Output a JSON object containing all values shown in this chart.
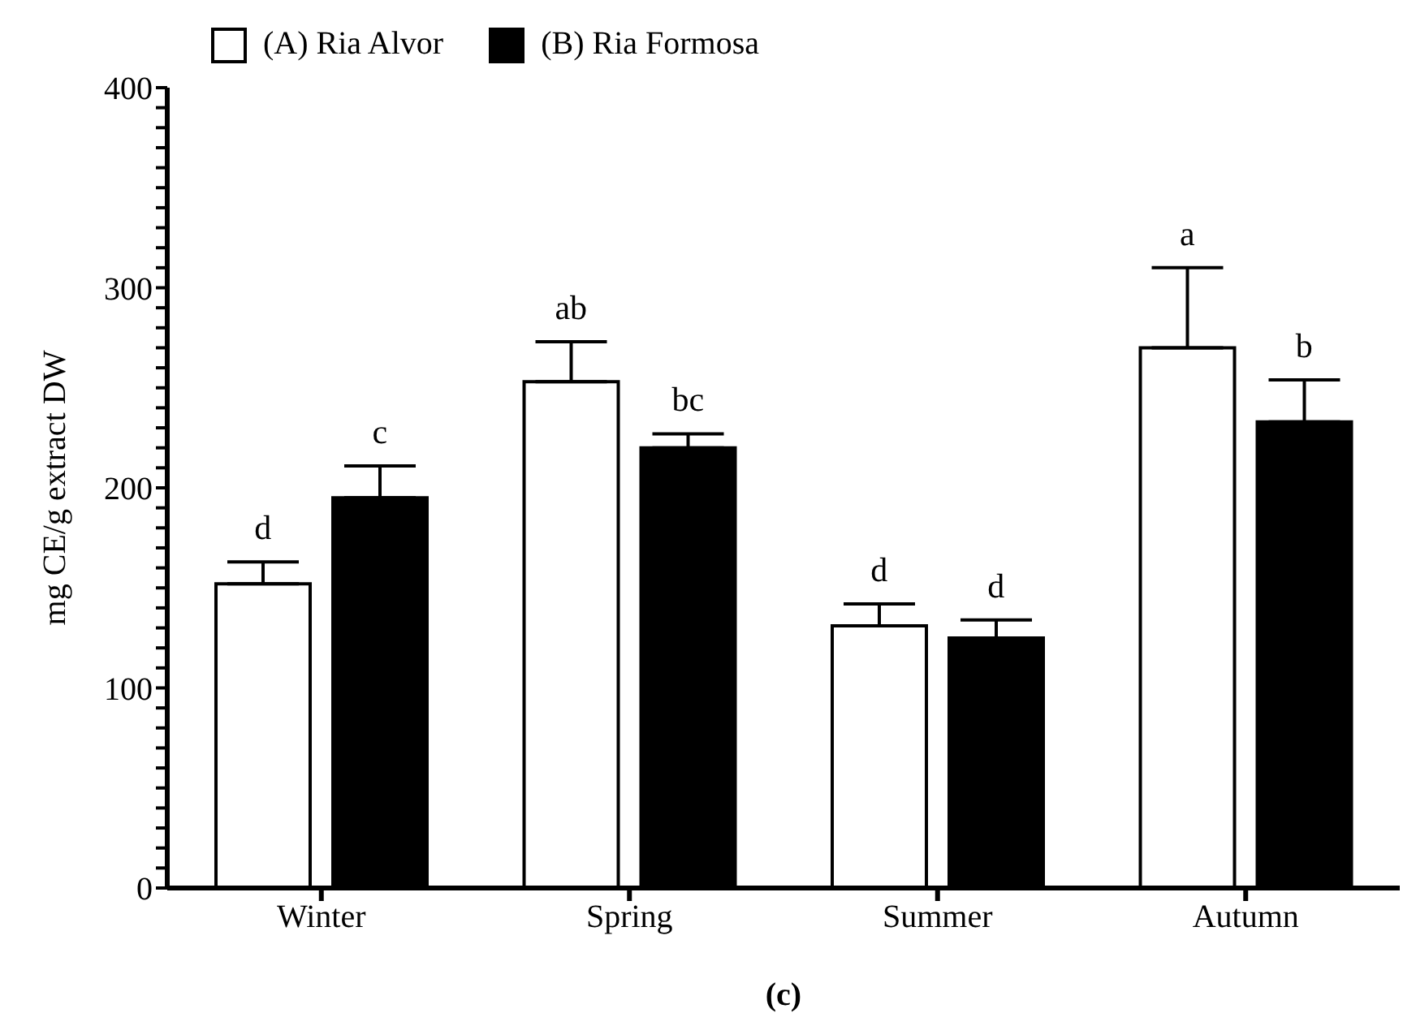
{
  "chart_data": {
    "type": "bar",
    "xlabel": "(c)",
    "ylabel": "mg CE/g extract DW",
    "categories": [
      "Winter",
      "Spring",
      "Summer",
      "Autumn"
    ],
    "series": [
      {
        "name": "(A) Ria Alvor",
        "color": "#ffffff",
        "values": [
          152,
          253,
          131,
          270
        ],
        "errors": [
          [
            152,
            163
          ],
          [
            253,
            273
          ],
          [
            131,
            142
          ],
          [
            270,
            310
          ]
        ]
      },
      {
        "name": "(B) Ria Formosa",
        "color": "#000000",
        "values": [
          195,
          220,
          125,
          233
        ],
        "errors": [
          [
            195,
            211
          ],
          [
            220,
            227
          ],
          [
            125,
            134
          ],
          [
            233,
            254
          ]
        ]
      }
    ],
    "ylim": [
      0,
      400
    ],
    "yticks": [
      0,
      {
        "value": 10,
        "label": null
      },
      {
        "value": 20,
        "label": null
      },
      {
        "value": 30,
        "label": null
      },
      {
        "value": 40,
        "label": null
      },
      {
        "value": 50,
        "label": null
      },
      {
        "value": 60,
        "label": null
      },
      {
        "value": 70,
        "label": null
      },
      {
        "value": 80,
        "label": null
      },
      {
        "value": 90,
        "label": null
      },
      100,
      {
        "value": 110,
        "label": null
      },
      {
        "value": 120,
        "label": null
      },
      {
        "value": 130,
        "label": null
      },
      {
        "value": 140,
        "label": null
      },
      {
        "value": 150,
        "label": null
      },
      {
        "value": 160,
        "label": null
      },
      {
        "value": 170,
        "label": null
      },
      {
        "value": 180,
        "label": null
      },
      {
        "value": 190,
        "label": null
      },
      200,
      {
        "value": 210,
        "label": null
      },
      {
        "value": 220,
        "label": null
      },
      {
        "value": 230,
        "label": null
      },
      {
        "value": 240,
        "label": null
      },
      {
        "value": 250,
        "label": null
      },
      {
        "value": 260,
        "label": null
      },
      {
        "value": 270,
        "label": null
      },
      {
        "value": 280,
        "label": null
      },
      {
        "value": 290,
        "label": null
      },
      300,
      {
        "value": 310,
        "label": null
      },
      {
        "value": 320,
        "label": null
      },
      {
        "value": 330,
        "label": null
      },
      {
        "value": 340,
        "label": null
      },
      {
        "value": 350,
        "label": null
      },
      {
        "value": 360,
        "label": null
      },
      {
        "value": 370,
        "label": null
      },
      {
        "value": 380,
        "label": null
      },
      {
        "value": 390,
        "label": null
      },
      400
    ],
    "legend": "top left",
    "annotations": [
      "d",
      "c",
      "ab",
      "bc",
      "d",
      "d",
      "a",
      "b"
    ]
  }
}
